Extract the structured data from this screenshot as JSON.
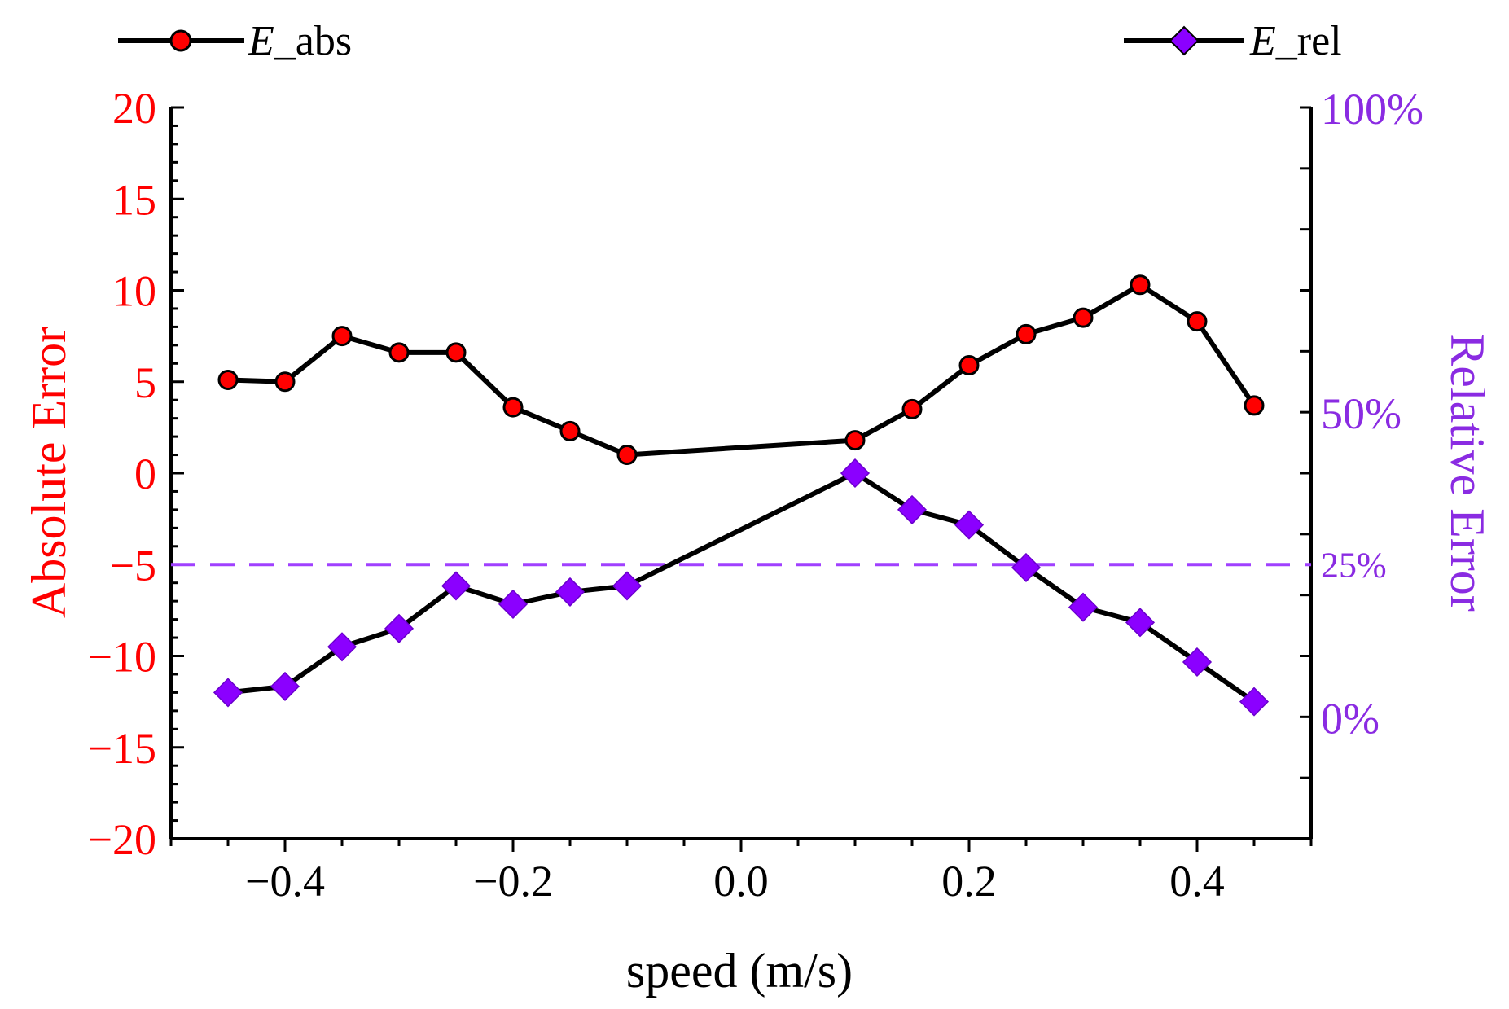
{
  "chart_data": {
    "type": "line",
    "title": "",
    "xlabel": "speed (m/s)",
    "ylabel_left": "Absolute Error",
    "ylabel_right": "Relative Error",
    "xlim": [
      -0.5,
      0.5
    ],
    "ylim_left": [
      -20,
      20
    ],
    "ylim_right": [
      -0.2,
      1.0
    ],
    "x_ticks": [
      -0.4,
      -0.2,
      0.0,
      0.2,
      0.4
    ],
    "x_tick_labels": [
      "−0.4",
      "−0.2",
      "0.0",
      "0.2",
      "0.4"
    ],
    "y_left_ticks": [
      20,
      15,
      10,
      5,
      0,
      -5,
      -10,
      -15,
      -20
    ],
    "y_left_tick_labels": [
      "20",
      "15",
      "10",
      "5",
      "0",
      "−5",
      "−10",
      "−15",
      "−20"
    ],
    "y_right_ticks": [
      1.0,
      0.5,
      0.25,
      0.0
    ],
    "y_right_tick_labels": [
      "100%",
      "50%",
      "25%",
      "0%"
    ],
    "reference_line": {
      "axis": "right",
      "value": 0.25,
      "style": "dashed"
    },
    "legend_placement": "top",
    "series": [
      {
        "name": "E_abs",
        "legend_italic": "E",
        "legend_rest": "_abs",
        "axis": "left",
        "marker": "circle",
        "x": [
          -0.45,
          -0.4,
          -0.35,
          -0.3,
          -0.25,
          -0.2,
          -0.15,
          -0.1,
          0.1,
          0.15,
          0.2,
          0.25,
          0.3,
          0.35,
          0.4,
          0.45
        ],
        "values": [
          5.1,
          5.0,
          7.5,
          6.6,
          6.6,
          3.6,
          2.3,
          1.0,
          1.8,
          3.5,
          5.9,
          7.6,
          8.5,
          10.3,
          8.3,
          3.7
        ]
      },
      {
        "name": "E_rel",
        "legend_italic": "E",
        "legend_rest": "_rel",
        "axis": "right",
        "marker": "diamond",
        "x": [
          -0.45,
          -0.4,
          -0.35,
          -0.3,
          -0.25,
          -0.2,
          -0.15,
          -0.1,
          0.1,
          0.15,
          0.2,
          0.25,
          0.3,
          0.35,
          0.4,
          0.45
        ],
        "values": [
          0.04,
          0.05,
          0.115,
          0.145,
          0.215,
          0.185,
          0.205,
          0.215,
          0.4,
          0.34,
          0.315,
          0.245,
          0.18,
          0.155,
          0.09,
          0.025
        ]
      }
    ]
  },
  "colors": {
    "left_axis": "#ff0000",
    "right_axis": "#8a2be2",
    "line": "#000000",
    "abs_marker": "#ff0000",
    "rel_marker": "#8b00ff",
    "ref_line": "#a040ff"
  }
}
